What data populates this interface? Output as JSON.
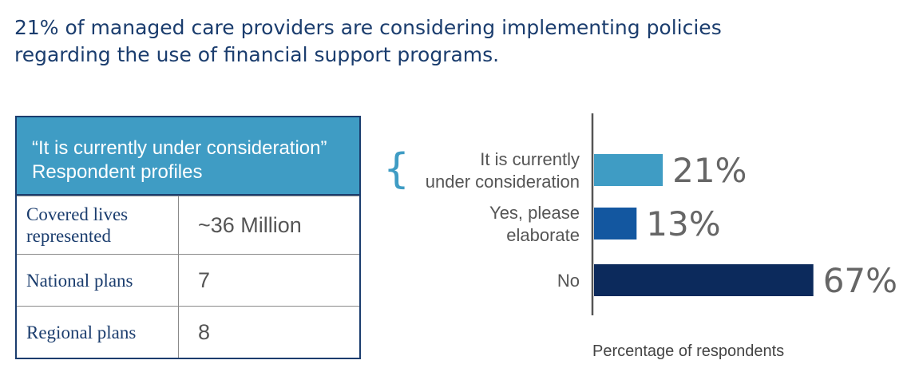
{
  "headline": {
    "line1": "21% of managed care providers are considering implementing policies",
    "line2": "regarding the use of financial support programs."
  },
  "profile_table": {
    "header_line1": "“It is currently under consideration”",
    "header_line2": "Respondent profiles",
    "rows": [
      {
        "label_lines": [
          "Covered lives",
          "represented"
        ],
        "value": "~36 Million"
      },
      {
        "label_lines": [
          "National plans"
        ],
        "value": "7"
      },
      {
        "label_lines": [
          "Regional plans"
        ],
        "value": "8"
      }
    ]
  },
  "colors": {
    "navy": "#1b3d6e",
    "teal": "#3f9cc4",
    "bar_light": "#3f9cc4",
    "bar_mid": "#1357a0",
    "bar_dark": "#0c2a5c"
  },
  "chart_data": {
    "type": "bar",
    "orientation": "horizontal",
    "categories": [
      {
        "lines": [
          "It is currently",
          "under consideration"
        ],
        "bracketed": true
      },
      {
        "lines": [
          "Yes, please",
          "elaborate"
        ],
        "bracketed": false
      },
      {
        "lines": [
          "No"
        ],
        "bracketed": false
      }
    ],
    "values": [
      21,
      13,
      67
    ],
    "value_labels": [
      "21%",
      "13%",
      "67%"
    ],
    "colors": [
      "#3f9cc4",
      "#1357a0",
      "#0c2a5c"
    ],
    "xlabel": "Percentage of respondents",
    "xlim": [
      0,
      100
    ],
    "grid": false,
    "legend": "none"
  }
}
